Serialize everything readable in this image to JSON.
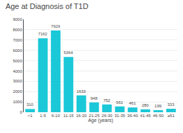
{
  "chart_data": {
    "type": "bar",
    "title": "Age at Diagnosis of T1D",
    "xlabel": "Age (years)",
    "categories": [
      "<1",
      "1-5",
      "6-10",
      "11-15",
      "16-20",
      "21-25",
      "26-30",
      "31-35",
      "36-40",
      "41-45",
      "46-50",
      "≥51"
    ],
    "values": [
      310,
      7162,
      7929,
      5364,
      1633,
      948,
      752,
      561,
      461,
      280,
      199,
      333
    ],
    "color": "#1ac8d8",
    "ylim": [
      0,
      9000
    ],
    "yticks": [
      0,
      1000,
      2000,
      3000,
      4000,
      5000,
      6000,
      7000,
      8000,
      9000
    ],
    "grid": true,
    "data_labels": true
  }
}
